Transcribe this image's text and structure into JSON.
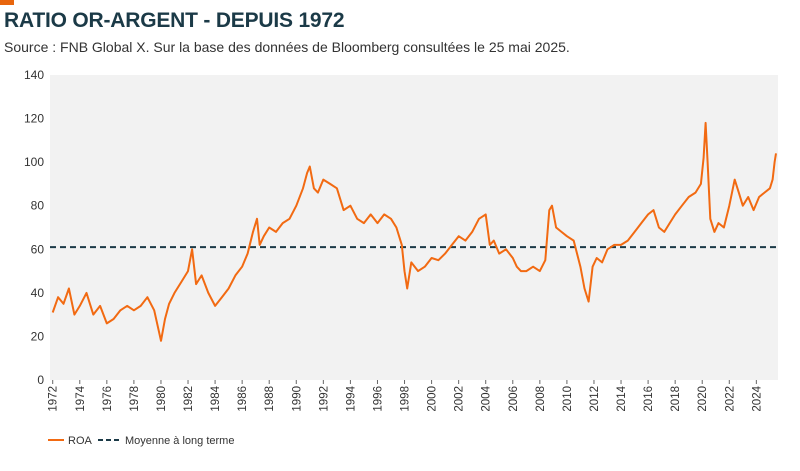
{
  "header": {
    "title": "RATIO OR-ARGENT - DEPUIS 1972",
    "subtitle": "Source : FNB Global X. Sur la base des données de Bloomberg consultées le 25 mai 2025."
  },
  "colors": {
    "accent": "#e8650d",
    "series_roa": "#f26a12",
    "mean_line": "#1b3a47",
    "plot_bg": "#f2f2f2",
    "title": "#1b3a47"
  },
  "chart_data": {
    "type": "line",
    "title": "RATIO OR-ARGENT - DEPUIS 1972",
    "xlabel": "",
    "ylabel": "",
    "xlim": [
      1971.8,
      2025.6
    ],
    "ylim": [
      0,
      140
    ],
    "yticks": [
      "0",
      "20",
      "40",
      "60",
      "80",
      "100",
      "120",
      "140"
    ],
    "xticks": [
      "1972",
      "1974",
      "1976",
      "1978",
      "1980",
      "1982",
      "1984",
      "1986",
      "1988",
      "1990",
      "1992",
      "1994",
      "1996",
      "1998",
      "2000",
      "2002",
      "2004",
      "2006",
      "2008",
      "2010",
      "2012",
      "2014",
      "2016",
      "2018",
      "2020",
      "2022",
      "2024"
    ],
    "grid": false,
    "legend_position": "bottom-left",
    "series": [
      {
        "name": "ROA",
        "x": [
          1972.0,
          1972.4,
          1972.8,
          1973.2,
          1973.6,
          1974.0,
          1974.5,
          1975.0,
          1975.5,
          1976.0,
          1976.5,
          1977.0,
          1977.5,
          1978.0,
          1978.5,
          1979.0,
          1979.5,
          1980.0,
          1980.3,
          1980.6,
          1981.0,
          1981.5,
          1982.0,
          1982.3,
          1982.6,
          1983.0,
          1983.5,
          1984.0,
          1984.5,
          1985.0,
          1985.5,
          1986.0,
          1986.4,
          1986.8,
          1987.1,
          1987.3,
          1987.6,
          1988.0,
          1988.5,
          1989.0,
          1989.5,
          1990.0,
          1990.5,
          1990.8,
          1991.0,
          1991.3,
          1991.6,
          1992.0,
          1992.5,
          1993.0,
          1993.5,
          1994.0,
          1994.5,
          1995.0,
          1995.5,
          1996.0,
          1996.5,
          1997.0,
          1997.4,
          1997.8,
          1998.0,
          1998.2,
          1998.5,
          1999.0,
          1999.5,
          2000.0,
          2000.5,
          2001.0,
          2001.5,
          2002.0,
          2002.5,
          2003.0,
          2003.5,
          2004.0,
          2004.3,
          2004.6,
          2005.0,
          2005.5,
          2006.0,
          2006.3,
          2006.6,
          2007.0,
          2007.5,
          2008.0,
          2008.4,
          2008.7,
          2008.9,
          2009.2,
          2009.6,
          2010.0,
          2010.5,
          2011.0,
          2011.3,
          2011.6,
          2011.9,
          2012.2,
          2012.6,
          2013.0,
          2013.5,
          2014.0,
          2014.5,
          2015.0,
          2015.5,
          2016.0,
          2016.4,
          2016.8,
          2017.2,
          2017.6,
          2018.0,
          2018.5,
          2019.0,
          2019.5,
          2019.9,
          2020.1,
          2020.25,
          2020.4,
          2020.6,
          2020.9,
          2021.2,
          2021.6,
          2022.0,
          2022.4,
          2022.7,
          2023.0,
          2023.4,
          2023.8,
          2024.2,
          2024.6,
          2025.0,
          2025.2,
          2025.35,
          2025.45
        ],
        "values": [
          31,
          38,
          35,
          42,
          30,
          34,
          40,
          30,
          34,
          26,
          28,
          32,
          34,
          32,
          34,
          38,
          32,
          18,
          28,
          35,
          40,
          45,
          50,
          60,
          44,
          48,
          40,
          34,
          38,
          42,
          48,
          52,
          58,
          68,
          74,
          62,
          66,
          70,
          68,
          72,
          74,
          80,
          88,
          95,
          98,
          88,
          86,
          92,
          90,
          88,
          78,
          80,
          74,
          72,
          76,
          72,
          76,
          74,
          70,
          62,
          50,
          42,
          54,
          50,
          52,
          56,
          55,
          58,
          62,
          66,
          64,
          68,
          74,
          76,
          62,
          64,
          58,
          60,
          56,
          52,
          50,
          50,
          52,
          50,
          55,
          78,
          80,
          70,
          68,
          66,
          64,
          52,
          42,
          36,
          52,
          56,
          54,
          60,
          62,
          62,
          64,
          68,
          72,
          76,
          78,
          70,
          68,
          72,
          76,
          80,
          84,
          86,
          90,
          102,
          118,
          100,
          74,
          68,
          72,
          70,
          80,
          92,
          86,
          80,
          84,
          78,
          84,
          86,
          88,
          92,
          100,
          104
        ]
      },
      {
        "name": "Moyenne à long terme",
        "x": [
          1971.8,
          2025.6
        ],
        "values": [
          61,
          61
        ]
      }
    ]
  }
}
